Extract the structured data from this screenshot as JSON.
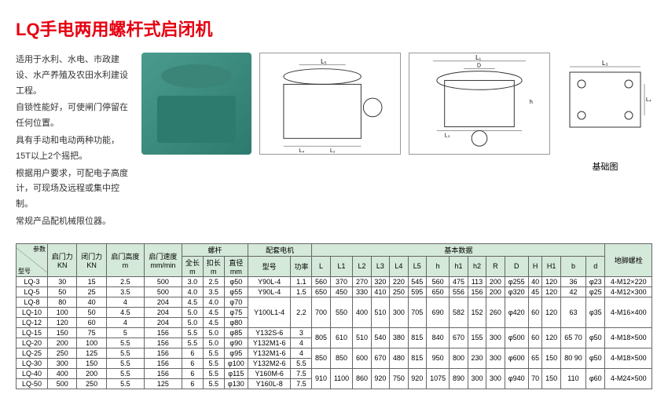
{
  "title": "LQ手电两用螺杆式启闭机",
  "description": [
    "适用于水利、水电、市政建设、水产养殖及农田水利建设工程。",
    "自锁性能好，可使闸门停留在任何位置。",
    "具有手动和电动两种功能，15T以上2个摇把。",
    "根据用户要求，可配电子高度计，可现场及远程或集中控制。",
    "常规产品配机械限位器。"
  ],
  "foundationLabel": "基础图",
  "table": {
    "paramLabel": {
      "top": "参数",
      "bottom": "型号"
    },
    "headerGroup1": [
      "启门力 KN",
      "闭门力 KN",
      "启门高度 m",
      "启门速度 mm/min"
    ],
    "screwHeader": "螺杆",
    "screwSub": [
      "全长 m",
      "扣长 m",
      "直径 mm"
    ],
    "motorHeader": "配套电机",
    "motorSub": [
      "型号",
      "功率"
    ],
    "basicHeader": "基本数据",
    "basicSub": [
      "L",
      "L1",
      "L2",
      "L3",
      "L4",
      "L5",
      "h",
      "h1",
      "h2",
      "R",
      "D",
      "H",
      "H1",
      "b",
      "d"
    ],
    "anchorHeader": "地脚螺栓",
    "rows": [
      {
        "model": "LQ-3",
        "open": "30",
        "close": "15",
        "height": "2.5",
        "speed": "500",
        "sl": "3.0",
        "kl": "2.5",
        "dia": "φ50",
        "motor": "Y90L-4",
        "pwr": "1.1",
        "L": "560",
        "L1": "370",
        "L2": "270",
        "L3": "320",
        "L4": "220",
        "L5": "545",
        "h": "560",
        "h1": "475",
        "h2": "113",
        "R": "200",
        "D": "φ255",
        "H": "40",
        "H1": "120",
        "b": "36",
        "d": "φ23",
        "anchor": "4-M12×220"
      },
      {
        "model": "LQ-5",
        "open": "50",
        "close": "25",
        "height": "3.5",
        "speed": "500",
        "sl": "4.0",
        "kl": "3.5",
        "dia": "φ55",
        "motor": "Y90L-4",
        "pwr": "1.5",
        "L": "650",
        "L1": "450",
        "L2": "330",
        "L3": "410",
        "L4": "250",
        "L5": "595",
        "h": "650",
        "h1": "556",
        "h2": "156",
        "R": "200",
        "D": "φ320",
        "H": "45",
        "H1": "120",
        "b": "42",
        "d": "φ25",
        "anchor": "4-M12×300"
      },
      {
        "model": "LQ-8",
        "open": "80",
        "close": "40",
        "height": "4",
        "speed": "204",
        "sl": "4.5",
        "kl": "4.0",
        "dia": "φ70",
        "motor": "Y100L1-4",
        "pwr": "2.2",
        "L": "700",
        "L1": "550",
        "L2": "400",
        "L3": "510",
        "L4": "300",
        "L5": "705",
        "h": "690",
        "h1": "582",
        "h2": "152",
        "R": "260",
        "D": "φ420",
        "H": "60",
        "H1": "120",
        "b": "63",
        "d": "φ35",
        "anchor": "4-M16×400"
      },
      {
        "model": "LQ-10",
        "open": "100",
        "close": "50",
        "height": "4.5",
        "speed": "204",
        "sl": "5.0",
        "kl": "4.5",
        "dia": "φ75",
        "motor": "",
        "pwr": "",
        "L": "",
        "L1": "",
        "L2": "",
        "L3": "",
        "L4": "",
        "L5": "",
        "h": "",
        "h1": "",
        "h2": "",
        "R": "",
        "D": "",
        "H": "",
        "H1": "",
        "b": "",
        "d": "",
        "anchor": ""
      },
      {
        "model": "LQ-12",
        "open": "120",
        "close": "60",
        "height": "4",
        "speed": "204",
        "sl": "5.0",
        "kl": "4.5",
        "dia": "φ80",
        "motor": "",
        "pwr": "",
        "L": "",
        "L1": "",
        "L2": "",
        "L3": "",
        "L4": "",
        "L5": "",
        "h": "",
        "h1": "",
        "h2": "",
        "R": "",
        "D": "",
        "H": "",
        "H1": "",
        "b": "",
        "d": "",
        "anchor": ""
      },
      {
        "model": "LQ-15",
        "open": "150",
        "close": "75",
        "height": "5",
        "speed": "156",
        "sl": "5.5",
        "kl": "5.0",
        "dia": "φ85",
        "motor": "Y132S-6",
        "pwr": "3",
        "L": "805",
        "L1": "610",
        "L2": "510",
        "L3": "540",
        "L4": "380",
        "L5": "815",
        "h": "840",
        "h1": "670",
        "h2": "155",
        "R": "300",
        "D": "φ500",
        "H": "60",
        "H1": "120",
        "b": "65 70",
        "d": "φ50",
        "anchor": "4-M18×500"
      },
      {
        "model": "LQ-20",
        "open": "200",
        "close": "100",
        "height": "5.5",
        "speed": "156",
        "sl": "5.5",
        "kl": "5.0",
        "dia": "φ90",
        "motor": "Y132M1-6",
        "pwr": "4",
        "L": "",
        "L1": "",
        "L2": "",
        "L3": "",
        "L4": "",
        "L5": "",
        "h": "",
        "h1": "",
        "h2": "",
        "R": "",
        "D": "",
        "H": "",
        "H1": "",
        "b": "",
        "d": "",
        "anchor": ""
      },
      {
        "model": "LQ-25",
        "open": "250",
        "close": "125",
        "height": "5.5",
        "speed": "156",
        "sl": "6",
        "kl": "5.5",
        "dia": "φ95",
        "motor": "Y132M1-6",
        "pwr": "4",
        "L": "850",
        "L1": "850",
        "L2": "600",
        "L3": "670",
        "L4": "480",
        "L5": "815",
        "h": "950",
        "h1": "800",
        "h2": "230",
        "R": "300",
        "D": "φ600",
        "H": "65",
        "H1": "150",
        "b": "80 90",
        "d": "φ50",
        "anchor": "4-M18×500"
      },
      {
        "model": "LQ-30",
        "open": "300",
        "close": "150",
        "height": "5.5",
        "speed": "156",
        "sl": "6",
        "kl": "5.5",
        "dia": "φ100",
        "motor": "Y132M2-6",
        "pwr": "5.5",
        "L": "",
        "L1": "",
        "L2": "",
        "L3": "",
        "L4": "",
        "L5": "",
        "h": "",
        "h1": "",
        "h2": "",
        "R": "",
        "D": "",
        "H": "",
        "H1": "",
        "b": "",
        "d": "",
        "anchor": ""
      },
      {
        "model": "LQ-40",
        "open": "400",
        "close": "200",
        "height": "5.5",
        "speed": "156",
        "sl": "6",
        "kl": "5.5",
        "dia": "φ115",
        "motor": "Y160M-6",
        "pwr": "7.5",
        "L": "910",
        "L1": "1100",
        "L2": "860",
        "L3": "920",
        "L4": "750",
        "L5": "920",
        "h": "1075",
        "h1": "890",
        "h2": "300",
        "R": "300",
        "D": "φ940",
        "H": "70",
        "H1": "150",
        "b": "110",
        "d": "φ60",
        "anchor": "4-M24×500"
      },
      {
        "model": "LQ-50",
        "open": "500",
        "close": "250",
        "height": "5.5",
        "speed": "125",
        "sl": "6",
        "kl": "5.5",
        "dia": "φ130",
        "motor": "Y160L-8",
        "pwr": "7.5",
        "L": "",
        "L1": "",
        "L2": "",
        "L3": "",
        "L4": "",
        "L5": "",
        "h": "",
        "h1": "",
        "h2": "",
        "R": "",
        "D": "",
        "H": "",
        "H1": "",
        "b": "",
        "d": "",
        "anchor": ""
      }
    ],
    "merges": [
      {
        "start": 2,
        "span": 3,
        "cols": [
          "motor",
          "pwr",
          "L",
          "L1",
          "L2",
          "L3",
          "L4",
          "L5",
          "h",
          "h1",
          "h2",
          "R",
          "D",
          "H",
          "H1",
          "b",
          "d",
          "anchor"
        ]
      },
      {
        "start": 5,
        "span": 2,
        "cols": [
          "L",
          "L1",
          "L2",
          "L3",
          "L4",
          "L5",
          "h",
          "h1",
          "h2",
          "R",
          "D",
          "H",
          "H1",
          "b",
          "d",
          "anchor"
        ]
      },
      {
        "start": 7,
        "span": 2,
        "cols": [
          "L",
          "L1",
          "L2",
          "L3",
          "L4",
          "L5",
          "h",
          "h1",
          "h2",
          "R",
          "D",
          "H",
          "H1",
          "b",
          "d",
          "anchor"
        ]
      },
      {
        "start": 9,
        "span": 2,
        "cols": [
          "L",
          "L1",
          "L2",
          "L3",
          "L4",
          "L5",
          "h",
          "h1",
          "h2",
          "R",
          "D",
          "H",
          "H1",
          "b",
          "d",
          "anchor"
        ]
      }
    ]
  },
  "colors": {
    "accent": "#e60012",
    "headerBg": "#d4e9d9",
    "border": "#666"
  }
}
